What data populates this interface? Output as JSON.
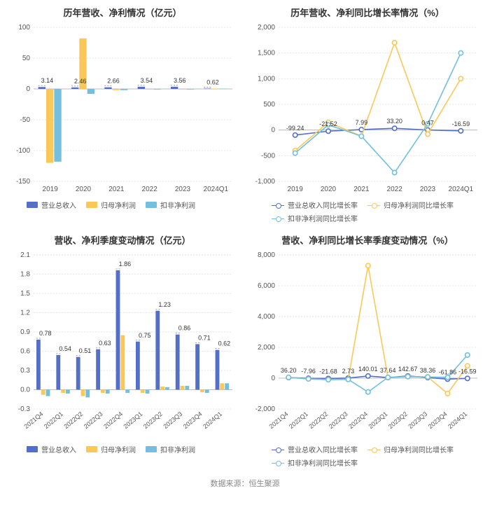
{
  "colors": {
    "series1": "#5470c6",
    "series2": "#fac858",
    "series3": "#91cc75",
    "series3_alt": "#73c0de",
    "grid": "#e6e6e6",
    "axis": "#cccccc",
    "text": "#555555",
    "title": "#333333",
    "bg": "#ffffff"
  },
  "footer": "数据来源：恒生聚源",
  "panels": {
    "tl": {
      "title": "历年营收、净利情况（亿元）",
      "type": "bar",
      "categories": [
        "2019",
        "2020",
        "2021",
        "2022",
        "2023",
        "2024Q1"
      ],
      "ylim": [
        -150,
        100
      ],
      "ytick_step": 50,
      "series": [
        {
          "name": "营业总收入",
          "color": "#5470c6",
          "values": [
            3.14,
            2.46,
            2.66,
            3.54,
            3.56,
            0.62
          ],
          "labels": [
            "3.14",
            "2.46",
            "2.66",
            "3.54",
            "3.56",
            "0.62"
          ],
          "show_labels": true
        },
        {
          "name": "归母净利润",
          "color": "#fac858",
          "values": [
            -120,
            82,
            -2,
            -1,
            -1,
            0.5
          ],
          "labels": [],
          "show_labels": false
        },
        {
          "name": "扣非净利润",
          "color": "#73c0de",
          "values": [
            -118,
            -8,
            -2,
            -1,
            -1,
            0.5
          ],
          "labels": [],
          "show_labels": false
        }
      ],
      "legend_style": "rect",
      "legend": [
        "营业总收入",
        "归母净利润",
        "扣非净利润"
      ],
      "legend_colors": [
        "#5470c6",
        "#fac858",
        "#73c0de"
      ],
      "rotate_x": false,
      "label_mode": "top-dash"
    },
    "tr": {
      "title": "历年营收、净利同比增长率情况（%）",
      "type": "line",
      "categories": [
        "2019",
        "2020",
        "2021",
        "2022",
        "2023",
        "2024Q1"
      ],
      "ylim": [
        -1000,
        2000
      ],
      "ytick_step": 500,
      "series": [
        {
          "name": "营业总收入同比增长率",
          "color": "#5470c6",
          "values": [
            -99.24,
            -21.52,
            7.99,
            33.2,
            0.47,
            -16.59
          ],
          "labels": [
            "-99.24",
            "-21.52",
            "7.99",
            "33.20",
            "0.47",
            "-16.59"
          ],
          "show_labels": true
        },
        {
          "name": "归母净利润同比增长率",
          "color": "#fac858",
          "values": [
            -400,
            150,
            -120,
            1700,
            -80,
            1000
          ],
          "labels": [],
          "show_labels": false
        },
        {
          "name": "扣非净利润同比增长率",
          "color": "#73c0de",
          "values": [
            -450,
            100,
            -120,
            -830,
            120,
            1500
          ],
          "labels": [],
          "show_labels": false
        }
      ],
      "legend_style": "line",
      "legend": [
        "营业总收入同比增长率",
        "归母净利润同比增长率",
        "扣非净利润同比增长率"
      ],
      "legend_colors": [
        "#5470c6",
        "#fac858",
        "#73c0de"
      ],
      "rotate_x": false
    },
    "bl": {
      "title": "营收、净利季度变动情况（亿元）",
      "type": "bar",
      "categories": [
        "2021Q4",
        "2022Q1",
        "2022Q2",
        "2022Q3",
        "2022Q4",
        "2023Q1",
        "2023Q2",
        "2023Q3",
        "2023Q4",
        "2024Q1"
      ],
      "ylim": [
        -0.3,
        2.1
      ],
      "ytick_step": 0.3,
      "series": [
        {
          "name": "营业总收入",
          "color": "#5470c6",
          "values": [
            0.78,
            0.54,
            0.51,
            0.63,
            1.86,
            0.75,
            1.23,
            0.86,
            0.71,
            0.62
          ],
          "labels": [
            "0.78",
            "0.54",
            "0.51",
            "0.63",
            "1.86",
            "0.75",
            "1.23",
            "0.86",
            "0.71",
            "0.62"
          ],
          "show_labels": true
        },
        {
          "name": "归母净利润",
          "color": "#fac858",
          "values": [
            -0.08,
            -0.05,
            -0.1,
            -0.05,
            0.85,
            -0.05,
            0.05,
            0.06,
            -0.04,
            0.1
          ],
          "labels": [],
          "show_labels": false
        },
        {
          "name": "扣非净利润",
          "color": "#73c0de",
          "values": [
            -0.1,
            -0.06,
            -0.12,
            -0.06,
            -0.05,
            -0.06,
            0.04,
            0.06,
            -0.05,
            0.1
          ],
          "labels": [],
          "show_labels": false
        }
      ],
      "legend_style": "rect",
      "legend": [
        "营业总收入",
        "归母净利润",
        "扣非净利润"
      ],
      "legend_colors": [
        "#5470c6",
        "#fac858",
        "#73c0de"
      ],
      "rotate_x": true,
      "label_mode": "top-dash"
    },
    "br": {
      "title": "营收、净利同比增长率季度变动情况（%）",
      "type": "line",
      "categories": [
        "2021Q4",
        "2022Q1",
        "2022Q2",
        "2022Q3",
        "2022Q4",
        "2023Q1",
        "2023Q2",
        "2023Q3",
        "2023Q4",
        "2024Q1"
      ],
      "ylim": [
        -2000,
        8000
      ],
      "ytick_step": 2000,
      "series": [
        {
          "name": "营业总收入同比增长率",
          "color": "#5470c6",
          "values": [
            36.2,
            -7.96,
            -21.68,
            2.73,
            140.01,
            37.64,
            142.67,
            38.36,
            -61.86,
            -16.59
          ],
          "labels": [
            "36.20",
            "-7.96",
            "-21.68",
            "2.73",
            "140.01",
            "37.64",
            "142.67",
            "38.36",
            "-61.86",
            "-16.59"
          ],
          "show_labels": true
        },
        {
          "name": "归母净利润同比增长率",
          "color": "#fac858",
          "values": [
            50,
            -50,
            -100,
            -80,
            7300,
            50,
            100,
            80,
            -1000,
            800
          ],
          "labels": [],
          "show_labels": false
        },
        {
          "name": "扣非净利润同比增长率",
          "color": "#73c0de",
          "values": [
            50,
            -50,
            -100,
            -80,
            -900,
            50,
            100,
            80,
            50,
            1500
          ],
          "labels": [],
          "show_labels": false
        }
      ],
      "legend_style": "line",
      "legend": [
        "营业总收入同比增长率",
        "归母净利润同比增长率",
        "扣非净利润同比增长率"
      ],
      "legend_colors": [
        "#5470c6",
        "#fac858",
        "#73c0de"
      ],
      "rotate_x": true
    }
  }
}
